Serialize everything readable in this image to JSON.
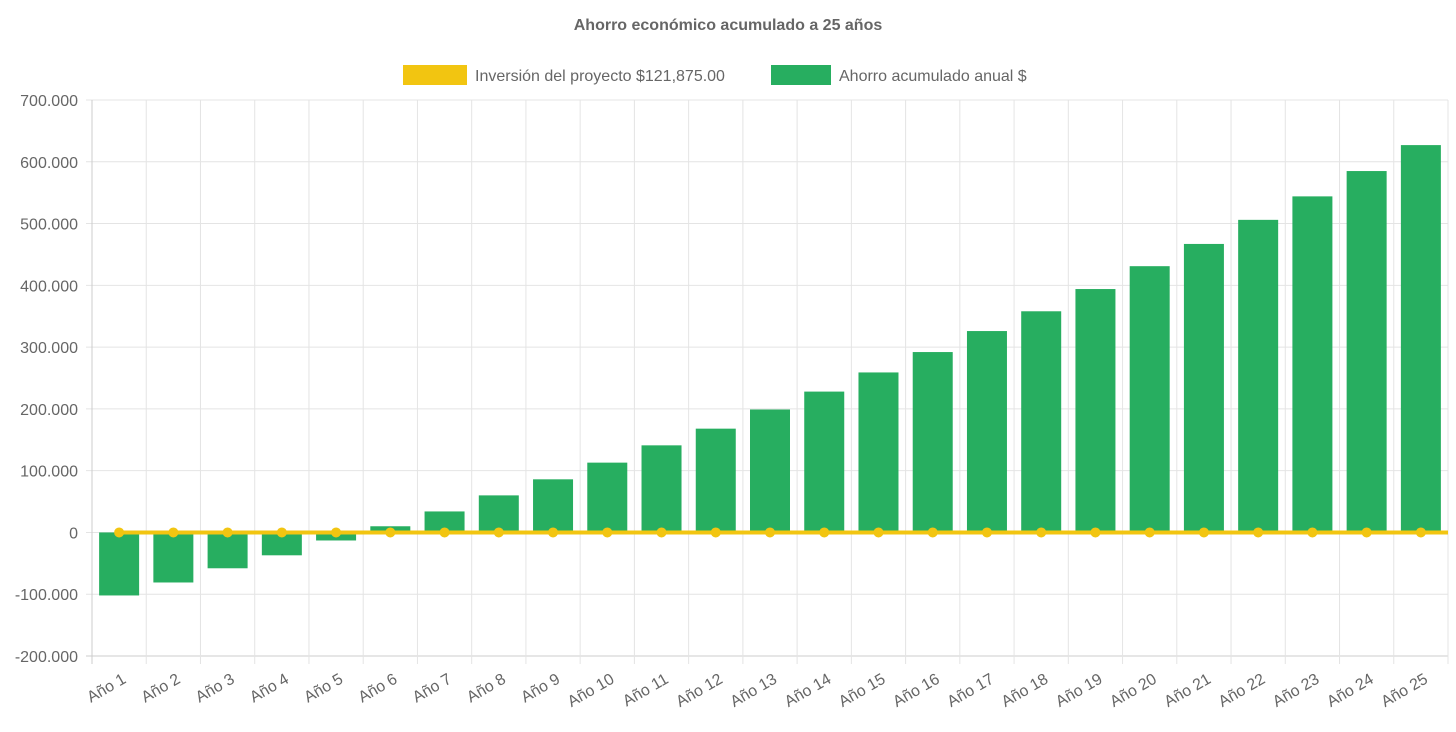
{
  "chart_data": {
    "type": "bar",
    "title": "Ahorro económico acumulado a 25 años",
    "legend_position": "top",
    "grid": true,
    "ylim": [
      -200000,
      700000
    ],
    "yticks": [
      700000,
      600000,
      500000,
      400000,
      300000,
      200000,
      100000,
      0,
      -100000,
      -200000
    ],
    "ytick_labels": [
      "700.000",
      "600.000",
      "500.000",
      "400.000",
      "300.000",
      "200.000",
      "100.000",
      "0",
      "-100.000",
      "-200.000"
    ],
    "categories": [
      "Año 1",
      "Año 2",
      "Año 3",
      "Año 4",
      "Año 5",
      "Año 6",
      "Año 7",
      "Año 8",
      "Año 9",
      "Año 10",
      "Año 11",
      "Año 12",
      "Año 13",
      "Año 14",
      "Año 15",
      "Año 16",
      "Año 17",
      "Año 18",
      "Año 19",
      "Año 20",
      "Año 21",
      "Año 22",
      "Año 23",
      "Año 24",
      "Año 25"
    ],
    "series": [
      {
        "name": "Inversión del proyecto $121,875.00",
        "type": "line",
        "color": "#f2c511",
        "values": [
          0,
          0,
          0,
          0,
          0,
          0,
          0,
          0,
          0,
          0,
          0,
          0,
          0,
          0,
          0,
          0,
          0,
          0,
          0,
          0,
          0,
          0,
          0,
          0,
          0
        ]
      },
      {
        "name": "Ahorro acumulado anual $",
        "type": "bar",
        "color": "#27ae60",
        "values": [
          -102000,
          -81000,
          -58000,
          -37000,
          -13000,
          10000,
          34000,
          60000,
          86000,
          113000,
          141000,
          168000,
          199000,
          228000,
          259000,
          292000,
          326000,
          358000,
          394000,
          431000,
          467000,
          506000,
          544000,
          585000,
          627000
        ]
      }
    ]
  }
}
